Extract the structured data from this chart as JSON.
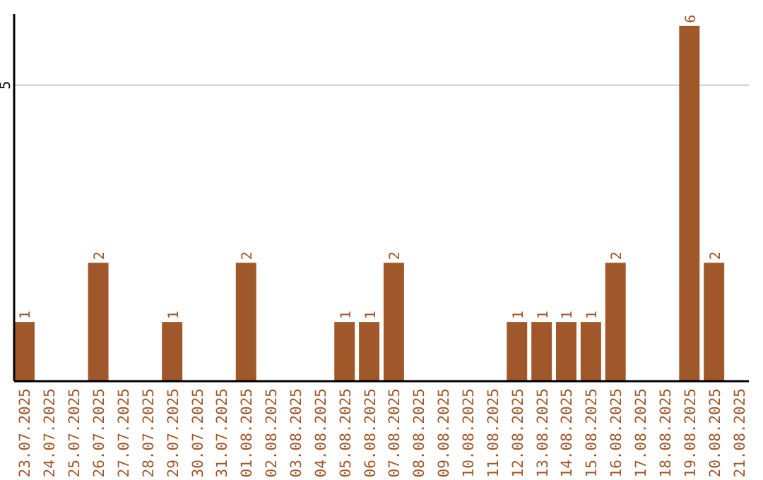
{
  "chart_data": {
    "type": "bar",
    "categories": [
      "23.07.2025",
      "24.07.2025",
      "25.07.2025",
      "26.07.2025",
      "27.07.2025",
      "28.07.2025",
      "29.07.2025",
      "30.07.2025",
      "31.07.2025",
      "01.08.2025",
      "02.08.2025",
      "03.08.2025",
      "04.08.2025",
      "05.08.2025",
      "06.08.2025",
      "07.08.2025",
      "08.08.2025",
      "09.08.2025",
      "10.08.2025",
      "11.08.2025",
      "12.08.2025",
      "13.08.2025",
      "14.08.2025",
      "15.08.2025",
      "16.08.2025",
      "17.08.2025",
      "18.08.2025",
      "19.08.2025",
      "20.08.2025",
      "21.08.2025"
    ],
    "values": [
      1,
      0,
      0,
      2,
      0,
      0,
      1,
      0,
      0,
      2,
      0,
      0,
      0,
      1,
      1,
      2,
      0,
      0,
      0,
      0,
      1,
      1,
      1,
      1,
      2,
      0,
      0,
      6,
      2,
      0
    ],
    "value_labels": [
      "1",
      null,
      null,
      "2",
      null,
      null,
      "1",
      null,
      null,
      "2",
      null,
      null,
      null,
      "1",
      "1",
      "2",
      null,
      null,
      null,
      null,
      "1",
      "1",
      "1",
      "1",
      "2",
      null,
      null,
      "6",
      "2",
      null
    ],
    "color": "#a0572a",
    "ylim": [
      0,
      6.2
    ],
    "yticks": [
      5
    ],
    "grid": "y"
  }
}
